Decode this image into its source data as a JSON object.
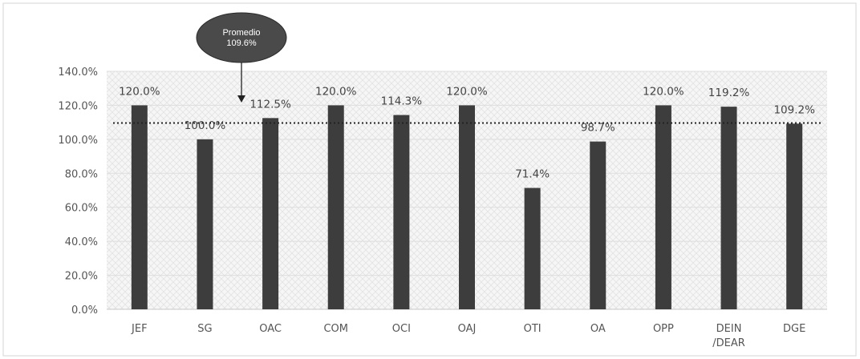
{
  "chart_data": {
    "type": "bar",
    "categories": [
      "JEF",
      "SG",
      "OAC",
      "COM",
      "OCI",
      "OAJ",
      "OTI",
      "OA",
      "OPP",
      "DEIN\n/DEAR",
      "DGE"
    ],
    "values": [
      120.0,
      100.0,
      112.5,
      120.0,
      114.3,
      120.0,
      71.4,
      98.7,
      120.0,
      119.2,
      109.2
    ],
    "value_labels": [
      "120.0%",
      "100.0%",
      "112.5%",
      "120.0%",
      "114.3%",
      "120.0%",
      "71.4%",
      "98.7%",
      "120.0%",
      "119.2%",
      "109.2%"
    ],
    "ylim": [
      0,
      140
    ],
    "yticks": [
      "0.0%",
      "20.0%",
      "40.0%",
      "60.0%",
      "80.0%",
      "100.0%",
      "120.0%",
      "140.0%"
    ],
    "average": {
      "value": 109.6,
      "label_line1": "Promedio",
      "label_line2": "109.6%"
    },
    "title": "",
    "xlabel": "",
    "ylabel": "",
    "grid": true,
    "legend": "none",
    "colors": {
      "bar": "#3d3d3d",
      "average_line": "#222222",
      "callout_fill": "#4a4a4a",
      "background": "#f4f4f4"
    }
  }
}
